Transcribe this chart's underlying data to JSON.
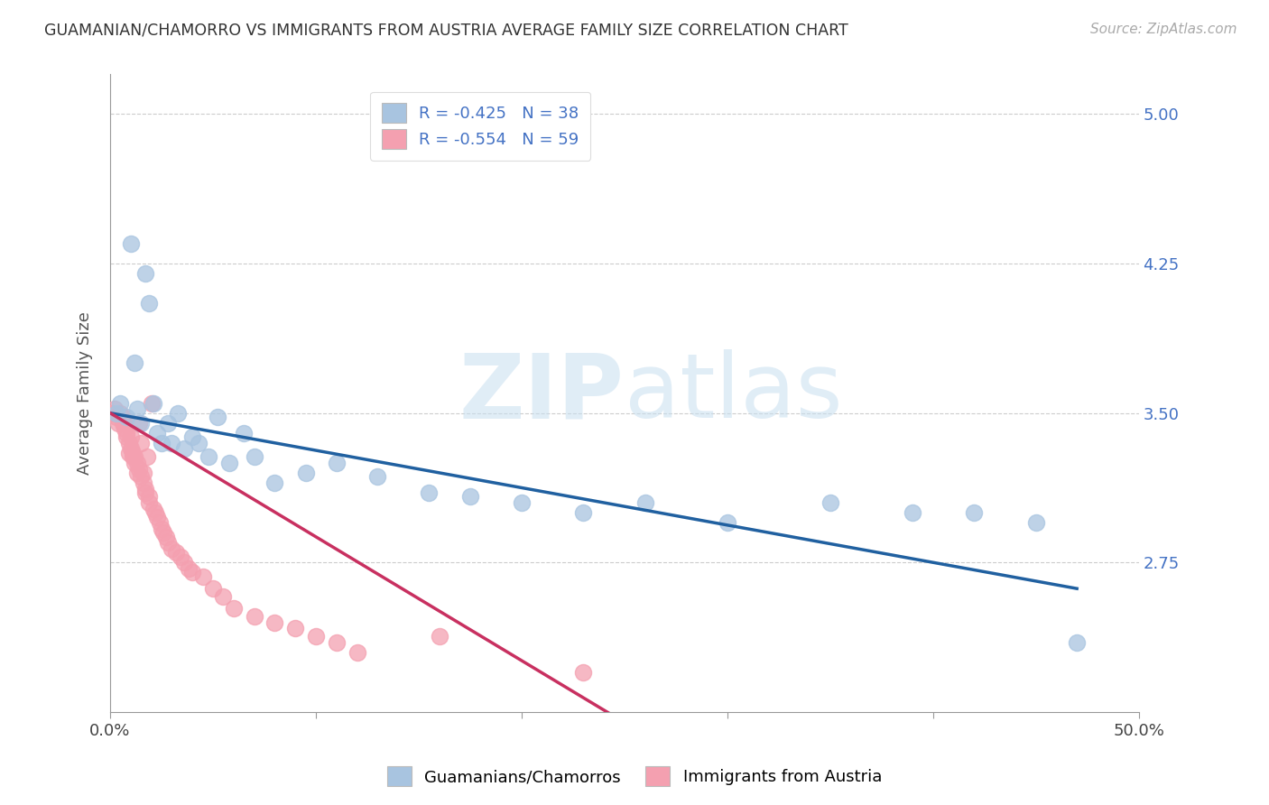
{
  "title": "GUAMANIAN/CHAMORRO VS IMMIGRANTS FROM AUSTRIA AVERAGE FAMILY SIZE CORRELATION CHART",
  "source": "Source: ZipAtlas.com",
  "ylabel": "Average Family Size",
  "xlim": [
    0.0,
    0.5
  ],
  "ylim": [
    2.0,
    5.2
  ],
  "yticks": [
    2.75,
    3.5,
    4.25,
    5.0
  ],
  "xticks": [
    0.0,
    0.1,
    0.2,
    0.3,
    0.4,
    0.5
  ],
  "xticklabels": [
    "0.0%",
    "",
    "",
    "",
    "",
    "50.0%"
  ],
  "yticklabels_right": [
    "2.75",
    "3.50",
    "4.25",
    "5.00"
  ],
  "blue_R": "-0.425",
  "blue_N": "38",
  "pink_R": "-0.554",
  "pink_N": "59",
  "blue_color": "#a8c4e0",
  "pink_color": "#f4a0b0",
  "blue_line_color": "#2060a0",
  "pink_line_color": "#c83060",
  "legend_label_blue": "Guamanians/Chamorros",
  "legend_label_pink": "Immigrants from Austria",
  "watermark_zip": "ZIP",
  "watermark_atlas": "atlas",
  "blue_x": [
    0.003,
    0.005,
    0.008,
    0.01,
    0.012,
    0.013,
    0.015,
    0.017,
    0.019,
    0.021,
    0.023,
    0.025,
    0.028,
    0.03,
    0.033,
    0.036,
    0.04,
    0.043,
    0.048,
    0.052,
    0.058,
    0.065,
    0.07,
    0.08,
    0.095,
    0.11,
    0.13,
    0.155,
    0.175,
    0.2,
    0.23,
    0.26,
    0.3,
    0.35,
    0.39,
    0.42,
    0.45,
    0.47
  ],
  "blue_y": [
    3.5,
    3.55,
    3.48,
    4.35,
    3.75,
    3.52,
    3.45,
    4.2,
    4.05,
    3.55,
    3.4,
    3.35,
    3.45,
    3.35,
    3.5,
    3.32,
    3.38,
    3.35,
    3.28,
    3.48,
    3.25,
    3.4,
    3.28,
    3.15,
    3.2,
    3.25,
    3.18,
    3.1,
    3.08,
    3.05,
    3.0,
    3.05,
    2.95,
    3.05,
    3.0,
    3.0,
    2.95,
    2.35
  ],
  "pink_x": [
    0.001,
    0.002,
    0.003,
    0.004,
    0.005,
    0.006,
    0.006,
    0.007,
    0.007,
    0.008,
    0.008,
    0.009,
    0.009,
    0.01,
    0.01,
    0.011,
    0.011,
    0.012,
    0.012,
    0.013,
    0.013,
    0.014,
    0.014,
    0.015,
    0.015,
    0.016,
    0.016,
    0.017,
    0.017,
    0.018,
    0.019,
    0.019,
    0.02,
    0.021,
    0.022,
    0.023,
    0.024,
    0.025,
    0.026,
    0.027,
    0.028,
    0.03,
    0.032,
    0.034,
    0.036,
    0.038,
    0.04,
    0.045,
    0.05,
    0.055,
    0.06,
    0.07,
    0.08,
    0.09,
    0.1,
    0.11,
    0.12,
    0.16,
    0.23
  ],
  "pink_y": [
    3.5,
    3.52,
    3.48,
    3.45,
    3.5,
    3.48,
    3.45,
    3.45,
    3.42,
    3.4,
    3.38,
    3.35,
    3.3,
    3.38,
    3.32,
    3.3,
    3.28,
    3.28,
    3.25,
    3.25,
    3.2,
    3.45,
    3.22,
    3.35,
    3.18,
    3.2,
    3.15,
    3.12,
    3.1,
    3.28,
    3.08,
    3.05,
    3.55,
    3.02,
    3.0,
    2.98,
    2.95,
    2.92,
    2.9,
    2.88,
    2.85,
    2.82,
    2.8,
    2.78,
    2.75,
    2.72,
    2.7,
    2.68,
    2.62,
    2.58,
    2.52,
    2.48,
    2.45,
    2.42,
    2.38,
    2.35,
    2.3,
    2.38,
    2.2
  ],
  "blue_line_x0": 0.0,
  "blue_line_x1": 0.47,
  "blue_line_y0": 3.5,
  "blue_line_y1": 2.62,
  "pink_line_x0": 0.0,
  "pink_line_x1": 0.245,
  "pink_line_y0": 3.5,
  "pink_line_y1": 1.98
}
